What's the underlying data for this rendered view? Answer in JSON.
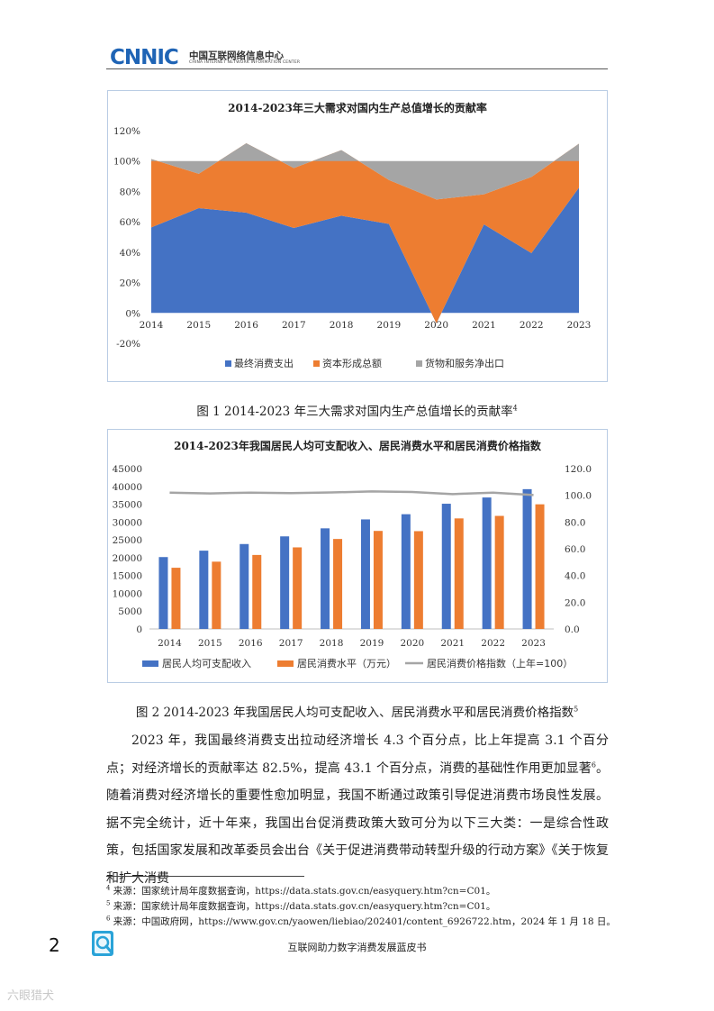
{
  "header": {
    "logo_text": "CNNIC",
    "org_cn": "中国互联网络信息中心",
    "org_en": "CHINA INTERNET NETWORK INFORMATION CENTER"
  },
  "chart_data": [
    {
      "type": "area",
      "stacked": true,
      "title": "2014-2023年三大需求对国内生产总值增长的贡献率",
      "categories": [
        "2014",
        "2015",
        "2016",
        "2017",
        "2018",
        "2019",
        "2020",
        "2021",
        "2022",
        "2023"
      ],
      "series": [
        {
          "name": "最终消费支出",
          "color": "#4472c4",
          "values": [
            56.3,
            69.0,
            66.0,
            55.9,
            64.0,
            58.6,
            -6.8,
            58.3,
            39.4,
            82.5
          ]
        },
        {
          "name": "资本形成总额",
          "color": "#ed7d31",
          "values": [
            45.0,
            22.6,
            45.7,
            39.5,
            43.2,
            28.9,
            81.5,
            19.8,
            50.1,
            28.9
          ]
        },
        {
          "name": "货物和服务净出口",
          "color": "#a5a5a5",
          "values": [
            -1.3,
            8.4,
            -11.7,
            4.6,
            -7.2,
            12.5,
            25.3,
            21.9,
            10.5,
            -11.4
          ]
        }
      ],
      "yticks": [
        "120%",
        "100%",
        "80%",
        "60%",
        "40%",
        "20%",
        "0%",
        "-20%"
      ],
      "ylim": [
        -20,
        120
      ],
      "legend_position": "bottom"
    },
    {
      "type": "bar+line",
      "title": "2014-2023年我国居民人均可支配收入、居民消费水平和居民消费价格指数",
      "categories": [
        "2014",
        "2015",
        "2016",
        "2017",
        "2018",
        "2019",
        "2020",
        "2021",
        "2022",
        "2023"
      ],
      "series": [
        {
          "name": "居民人均可支配收入",
          "type": "bar",
          "axis": "left",
          "color": "#4472c4",
          "values": [
            20167,
            21966,
            23821,
            25974,
            28228,
            30733,
            32189,
            35128,
            36883,
            39218
          ]
        },
        {
          "name": "居民消费水平（万元）",
          "type": "bar",
          "axis": "left",
          "color": "#ed7d31",
          "values": [
            17171,
            18876,
            20760,
            22887,
            25245,
            27504,
            27438,
            31013,
            31718,
            34969
          ]
        },
        {
          "name": "居民消费价格指数（上年=100）",
          "type": "line",
          "axis": "right",
          "color": "#a5a5a5",
          "values": [
            102.0,
            101.4,
            102.0,
            101.6,
            102.1,
            102.9,
            102.5,
            100.9,
            102.0,
            100.2
          ]
        }
      ],
      "yticks_left": [
        "45000",
        "40000",
        "35000",
        "30000",
        "25000",
        "20000",
        "15000",
        "10000",
        "5000",
        "0"
      ],
      "yticks_right": [
        "120.0",
        "100.0",
        "80.0",
        "60.0",
        "40.0",
        "20.0",
        "0.0"
      ],
      "ylim_left": [
        0,
        45000
      ],
      "ylim_right": [
        0,
        120
      ],
      "legend_position": "bottom"
    }
  ],
  "captions": {
    "fig1_text": "图 1  2014-2023 年三大需求对国内生产总值增长的贡献率",
    "fig1_sup": "4",
    "fig2_text": "图 2  2014-2023 年我国居民人均可支配收入、居民消费水平和居民消费价格指数",
    "fig2_sup": "5"
  },
  "body": {
    "para_a": "2023 年，我国最终消费支出拉动经济增长 4.3 个百分点，比上年提高 3.1 个百分点；对经济增长的贡献率达 82.5%，提高 43.1 个百分点，消费的基础性作用更加显著",
    "para_sup": "6",
    "para_b": "。随着消费对经济增长的重要性愈加明显，我国不断通过政策引导促进消费市场良性发展。据不完全统计，近十年来，我国出台促消费政策大致可分为以下三大类：一是综合性政策，包括国家发展和改革委员会出台《关于促进消费带动转型升级的行动方案》《关于恢复和扩大消费"
  },
  "footnotes": [
    {
      "num": "4",
      "text": " 来源：国家统计局年度数据查询，https://data.stats.gov.cn/easyquery.htm?cn=C01。"
    },
    {
      "num": "5",
      "text": " 来源：国家统计局年度数据查询，https://data.stats.gov.cn/easyquery.htm?cn=C01。"
    },
    {
      "num": "6",
      "text": " 来源：中国政府网，https://www.gov.cn/yaowen/liebiao/202401/content_6926722.htm，2024 年 1 月 18 日。"
    }
  ],
  "footer": {
    "page_number": "2",
    "book_title": "互联网助力数字消费发展蓝皮书"
  },
  "watermark": "六眼猎犬"
}
